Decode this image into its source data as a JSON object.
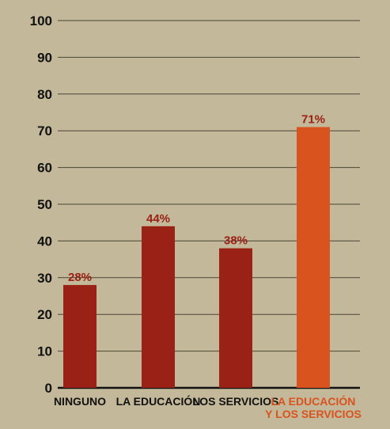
{
  "chart_data": {
    "type": "bar",
    "categories": [
      [
        "NINGUNO"
      ],
      [
        "LA EDUCACIÓN"
      ],
      [
        "LOS SERVICIOS"
      ],
      [
        "LA EDUCACIÓN",
        "Y LOS SERVICIOS"
      ]
    ],
    "values": [
      28,
      44,
      38,
      71
    ],
    "data_labels": [
      "28%",
      "44%",
      "38%",
      "71%"
    ],
    "bar_colors": [
      "#9a2116",
      "#9a2116",
      "#9a2116",
      "#d9531e"
    ],
    "label_colors": [
      "#111111",
      "#111111",
      "#111111",
      "#d9531e"
    ],
    "value_label_colors": [
      "#9a2116",
      "#9a2116",
      "#9a2116",
      "#9a2116"
    ],
    "yticks": [
      0,
      10,
      20,
      30,
      40,
      50,
      60,
      70,
      80,
      90,
      100
    ],
    "ylim": [
      0,
      100
    ],
    "grid": true,
    "background": "#c3b899",
    "title": "",
    "xlabel": "",
    "ylabel": ""
  }
}
